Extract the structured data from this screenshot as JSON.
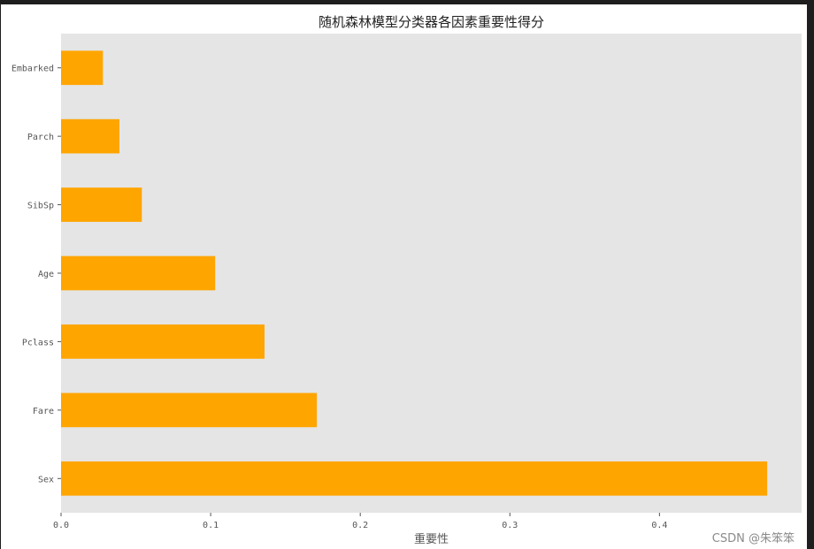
{
  "chart_data": {
    "type": "bar",
    "orientation": "horizontal",
    "title": "随机森林模型分类器各因素重要性得分",
    "xlabel": "重要性",
    "ylabel": "",
    "categories": [
      "Embarked",
      "Parch",
      "SibSp",
      "Age",
      "Pclass",
      "Fare",
      "Sex"
    ],
    "values": [
      0.028,
      0.039,
      0.054,
      0.103,
      0.136,
      0.171,
      0.472
    ],
    "xlim": [
      0,
      0.495
    ],
    "xticks": [
      "0.0",
      "0.1",
      "0.2",
      "0.3",
      "0.4"
    ],
    "grid": false,
    "bar_color": "#ffa500",
    "background_color": "#e5e5e5"
  },
  "watermark": "CSDN @朱笨笨"
}
